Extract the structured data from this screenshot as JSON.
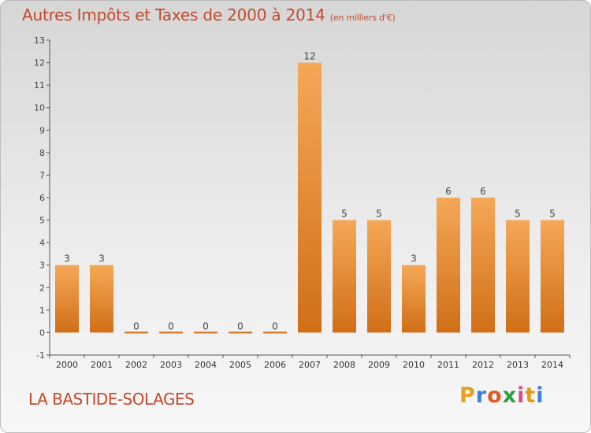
{
  "header": {
    "title": "Autres Impôts et Taxes de 2000 à 2014",
    "unit": "(en milliers d'€)"
  },
  "footer": {
    "commune": "LA BASTIDE-SOLAGES",
    "brand_letters": [
      "P",
      "r",
      "o",
      "x",
      "i",
      "t",
      "i"
    ],
    "brand_colors": [
      "#e2a21f",
      "#3b7fd6",
      "#e05a22",
      "#2d9c3c",
      "#d64d8b",
      "#e09c17",
      "#3b7fd6"
    ]
  },
  "chart_data": {
    "type": "bar",
    "categories": [
      "2000",
      "2001",
      "2002",
      "2003",
      "2004",
      "2005",
      "2006",
      "2007",
      "2008",
      "2009",
      "2010",
      "2011",
      "2012",
      "2013",
      "2014"
    ],
    "values": [
      3,
      3,
      0,
      0,
      0,
      0,
      0,
      12,
      5,
      5,
      3,
      6,
      6,
      5,
      5
    ],
    "data_labels": [
      "3",
      "3",
      "0",
      "0",
      "0",
      "0",
      "0",
      "12",
      "5",
      "5",
      "3",
      "6",
      "6",
      "5",
      "5"
    ],
    "yticks": [
      -1,
      0,
      1,
      2,
      3,
      4,
      5,
      6,
      7,
      8,
      9,
      10,
      11,
      12,
      13
    ],
    "ylim": [
      -1,
      13
    ],
    "grid": false,
    "bar_color_light": "#f5a857",
    "bar_color_dark": "#d06f16",
    "axis_color": "#555555"
  }
}
